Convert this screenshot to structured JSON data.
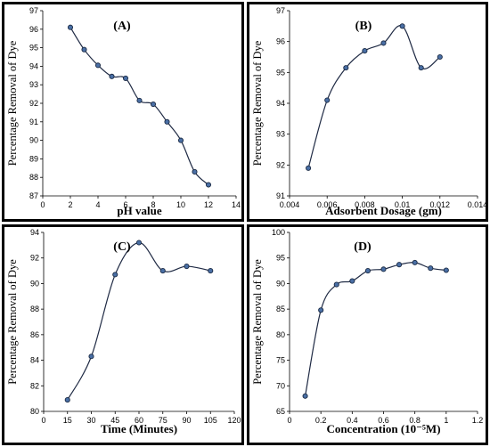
{
  "chart_data": [
    {
      "type": "line",
      "title": "(A)",
      "xlabel": "pH value",
      "ylabel": "Percentage Removal of Dye",
      "xlim": [
        0,
        14
      ],
      "ylim": [
        87,
        97
      ],
      "xticks": [
        "0",
        "2",
        "4",
        "6",
        "8",
        "10",
        "12",
        "14"
      ],
      "yticks": [
        "87",
        "88",
        "89",
        "90",
        "91",
        "92",
        "93",
        "94",
        "95",
        "96",
        "97"
      ],
      "grid": false,
      "x": [
        2,
        3,
        4,
        5,
        6,
        7,
        8,
        9,
        10,
        11,
        12
      ],
      "y": [
        96.1,
        94.9,
        94.05,
        93.45,
        93.35,
        92.15,
        91.95,
        91.0,
        90.0,
        88.3,
        87.6
      ]
    },
    {
      "type": "line",
      "title": "(B)",
      "xlabel": "Adsorbent Dosage (gm)",
      "ylabel": "Percentage Removal of Dye",
      "xlim": [
        0.004,
        0.014
      ],
      "ylim": [
        91,
        97
      ],
      "xticks": [
        "0.004",
        "0.006",
        "0.008",
        "0.01",
        "0.012",
        "0.014"
      ],
      "yticks": [
        "91",
        "92",
        "93",
        "94",
        "95",
        "96",
        "97"
      ],
      "grid": false,
      "x": [
        0.005,
        0.006,
        0.007,
        0.008,
        0.009,
        0.01,
        0.011,
        0.012
      ],
      "y": [
        91.9,
        94.1,
        95.15,
        95.7,
        95.95,
        96.5,
        95.15,
        95.5
      ]
    },
    {
      "type": "line",
      "title": "(C)",
      "xlabel": "Time (Minutes)",
      "ylabel": "Percentage Removal of Dye",
      "xlim": [
        0,
        120
      ],
      "ylim": [
        80,
        94
      ],
      "xticks": [
        "0",
        "15",
        "30",
        "45",
        "60",
        "75",
        "90",
        "105",
        "120"
      ],
      "yticks": [
        "80",
        "82",
        "84",
        "86",
        "88",
        "90",
        "92",
        "94"
      ],
      "grid": false,
      "x": [
        15,
        30,
        45,
        60,
        75,
        90,
        105
      ],
      "y": [
        80.9,
        84.3,
        90.7,
        93.2,
        91.0,
        91.35,
        91.0
      ]
    },
    {
      "type": "line",
      "title": "(D)",
      "xlabel": "Concentration (10⁻⁵M)",
      "ylabel": "Percentage Removal of Dye",
      "xlim": [
        0,
        1.2
      ],
      "ylim": [
        65,
        100
      ],
      "xticks": [
        "0",
        "0.2",
        "0.4",
        "0.6",
        "0.8",
        "1",
        "1.2"
      ],
      "yticks": [
        "65",
        "70",
        "75",
        "80",
        "85",
        "90",
        "95",
        "100"
      ],
      "grid": false,
      "x": [
        0.1,
        0.2,
        0.3,
        0.4,
        0.5,
        0.6,
        0.7,
        0.8,
        0.9,
        1.0
      ],
      "y": [
        68.0,
        84.8,
        89.8,
        90.5,
        92.5,
        92.8,
        93.7,
        94.1,
        93.0,
        92.6
      ]
    }
  ],
  "colors": {
    "line": "#1f2a44",
    "marker_fill": "#4a6fa5",
    "border": "#000000"
  }
}
